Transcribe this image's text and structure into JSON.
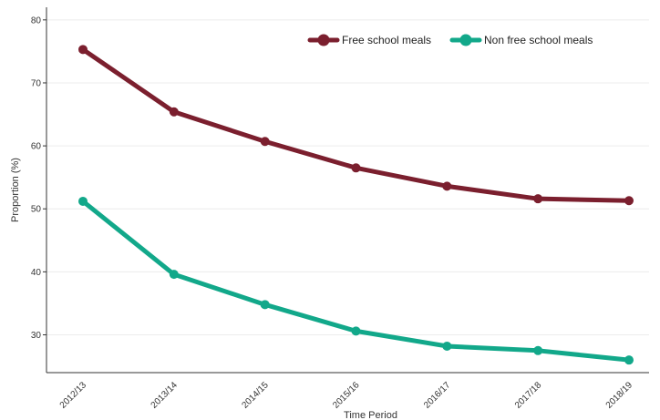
{
  "chart_data": {
    "type": "line",
    "title": "",
    "xlabel": "Time Period",
    "ylabel": "Proportion (%)",
    "categories": [
      "2012/13",
      "2013/14",
      "2014/15",
      "2015/16",
      "2016/17",
      "2017/18",
      "2018/19"
    ],
    "ylim": [
      24,
      82
    ],
    "yticks": [
      30,
      40,
      50,
      60,
      70,
      80
    ],
    "grid": true,
    "legend_position": "top-right",
    "series": [
      {
        "name": "Free school meals",
        "color": "#7b1f2e",
        "values": [
          75.3,
          65.4,
          60.7,
          56.5,
          53.6,
          51.6,
          51.3
        ]
      },
      {
        "name": "Non free school meals",
        "color": "#12a88a",
        "values": [
          51.2,
          39.6,
          34.8,
          30.6,
          28.2,
          27.5,
          26.0
        ]
      }
    ]
  }
}
